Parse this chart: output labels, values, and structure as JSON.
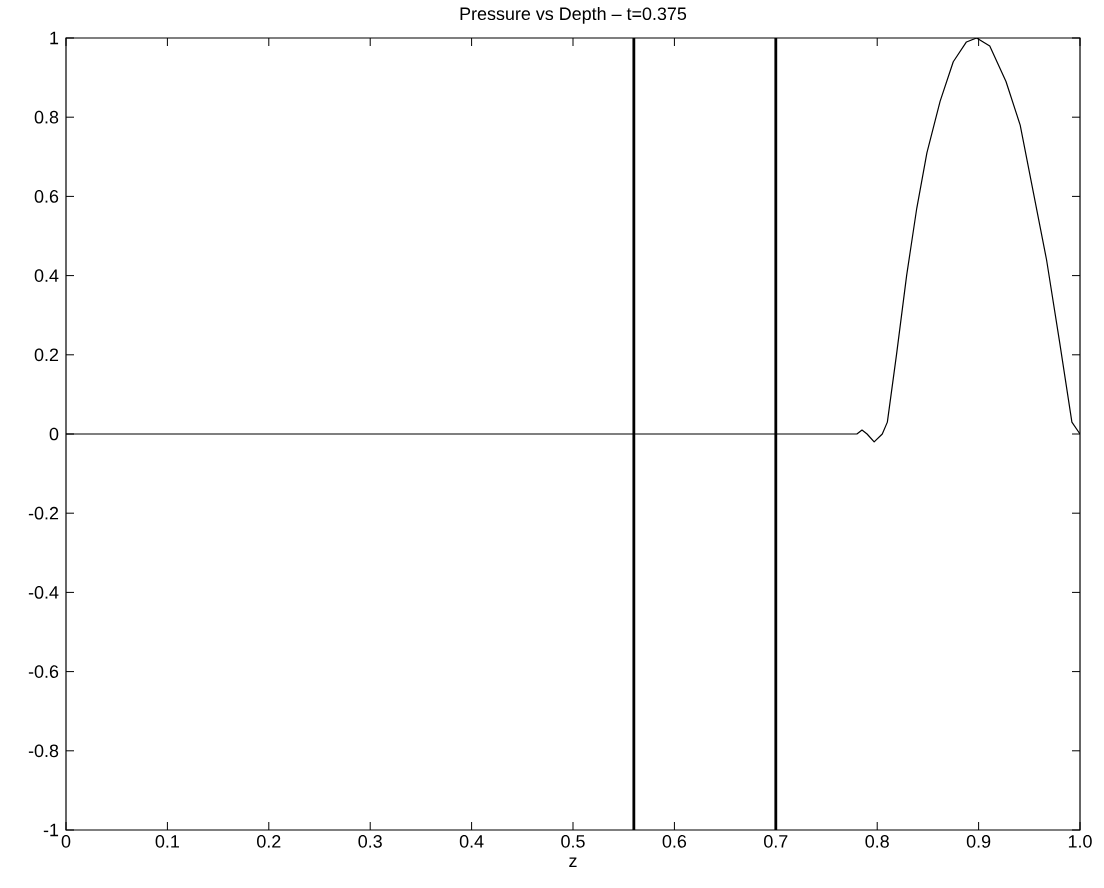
{
  "chart_data": {
    "type": "line",
    "title": "Pressure vs Depth – t=0.375",
    "xlabel": "z",
    "x": [
      0,
      0.2,
      0.4,
      0.56,
      0.7,
      0.78,
      0.785,
      0.79,
      0.797,
      0.805,
      0.81,
      0.819,
      0.829,
      0.839,
      0.849,
      0.862,
      0.875,
      0.888,
      0.898,
      0.911,
      0.927,
      0.941,
      0.954,
      0.967,
      0.98,
      0.992,
      1.0
    ],
    "series": [
      {
        "color": "#000000",
        "values": [
          0,
          0,
          0,
          0,
          0,
          0,
          0.01,
          0,
          -0.02,
          0.0,
          0.03,
          0.2,
          0.4,
          0.57,
          0.71,
          0.84,
          0.94,
          0.99,
          1.0,
          0.98,
          0.89,
          0.78,
          0.61,
          0.44,
          0.23,
          0.03,
          0
        ]
      }
    ],
    "xlim": [
      0,
      1
    ],
    "ylim": [
      -1,
      1
    ],
    "xticks": [
      0,
      0.1,
      0.2,
      0.3,
      0.4,
      0.5,
      0.6,
      0.7,
      0.8,
      0.9,
      {
        "value": 1,
        "label": "1.0"
      }
    ],
    "yticks": [
      -1,
      -0.8,
      -0.6,
      -0.4,
      -0.2,
      0,
      0.2,
      0.4,
      0.6,
      0.8,
      1
    ],
    "ref_lines": [
      {
        "axis": "x",
        "value": 0.56,
        "color": "#000000"
      },
      {
        "axis": "x",
        "value": 0.7,
        "color": "#000000"
      }
    ],
    "grid": false,
    "marker": "none",
    "line_style": "solid"
  }
}
